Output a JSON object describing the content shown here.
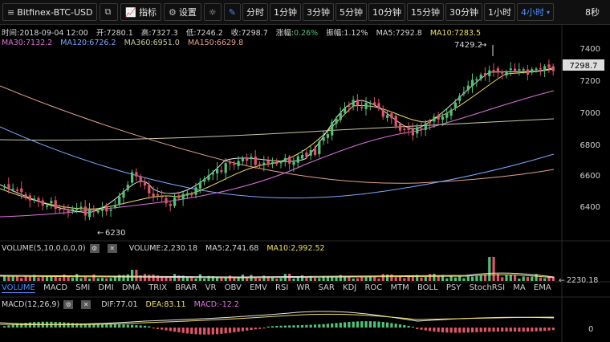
{
  "toolbar": {
    "pair": "Bitfinex-BTC-USD",
    "indicators_label": "指标",
    "settings_label": "设置",
    "timeframes": [
      "分时",
      "1分钟",
      "3分钟",
      "5分钟",
      "10分钟",
      "15分钟",
      "30分钟",
      "1小时",
      "4小时"
    ],
    "active_timeframe": "4小时",
    "countdown": "8秒"
  },
  "info": {
    "time": "时间:2018-09-04 12:00",
    "open": "开:7280.1",
    "high": "高:7327.3",
    "low": "低:7246.2",
    "close": "收:7298.7",
    "change_label": "涨幅:",
    "change": "0.26%",
    "amplitude": "振幅:1.12%",
    "ma5": "MA5:7292.8",
    "ma10": "MA10:7283.5",
    "ma30": "MA30:7132.2",
    "ma120": "MA120:6726.2",
    "ma360": "MA360:6951.0",
    "ma150": "MA150:6629.8"
  },
  "chart": {
    "price_ticks": [
      "7400",
      "7200",
      "7000",
      "6800",
      "6600",
      "6400"
    ],
    "last_price": "7298.7",
    "high_marker": "7429.2",
    "low_marker": "6230"
  },
  "volume": {
    "label": "VOLUME(5,10,0,0,0,0)",
    "value": "VOLUME:2,230.18",
    "ma5": "MA5:2,741.68",
    "ma10": "MA10:2,992.52",
    "axis_value": "2230.18"
  },
  "indicator_tabs": [
    "VOLUME",
    "MACD",
    "SMI",
    "DMI",
    "DMA",
    "TRIX",
    "BRAR",
    "VR",
    "OBV",
    "EMV",
    "RSI",
    "WR",
    "SAR",
    "KDJ",
    "ROC",
    "MTM",
    "BOLL",
    "PSY",
    "StochRSI",
    "MA",
    "EMA"
  ],
  "macd": {
    "label": "MACD(12,26,9)",
    "dif": "DIF:77.01",
    "dea": "DEA:83.11",
    "macd": "MACD:-12.2",
    "zero": "0"
  },
  "colors": {
    "up": "#4fc27a",
    "down": "#e0556a",
    "accent": "#4f8cff"
  }
}
